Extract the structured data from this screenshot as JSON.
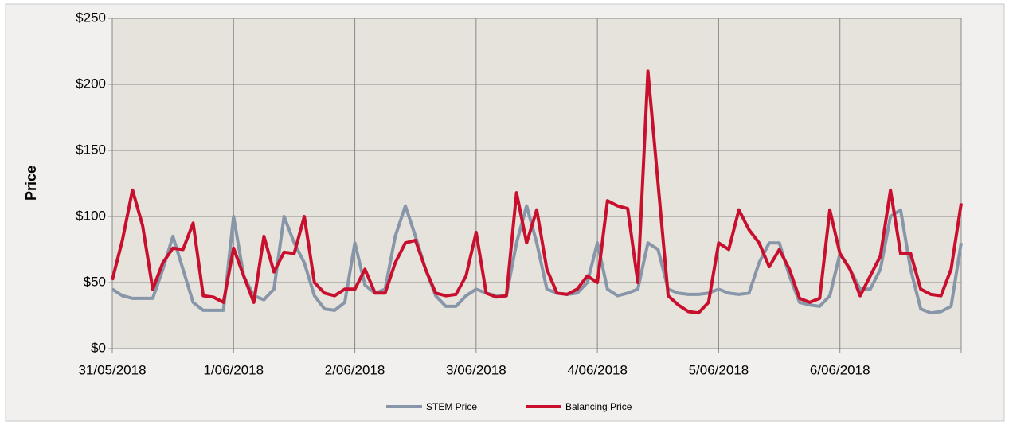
{
  "chart_data": {
    "type": "line",
    "y_label": "Price",
    "categories": [
      "31/05/2018",
      null,
      null,
      null,
      null,
      null,
      null,
      null,
      null,
      null,
      null,
      null,
      "1/06/2018",
      null,
      null,
      null,
      null,
      null,
      null,
      null,
      null,
      null,
      null,
      null,
      "2/06/2018",
      null,
      null,
      null,
      null,
      null,
      null,
      null,
      null,
      null,
      null,
      null,
      "3/06/2018",
      null,
      null,
      null,
      null,
      null,
      null,
      null,
      null,
      null,
      null,
      null,
      "4/06/2018",
      null,
      null,
      null,
      null,
      null,
      null,
      null,
      null,
      null,
      null,
      null,
      "5/06/2018",
      null,
      null,
      null,
      null,
      null,
      null,
      null,
      null,
      null,
      null,
      null,
      "6/06/2018",
      null,
      null,
      null,
      null,
      null,
      null,
      null,
      null,
      null,
      null,
      null,
      null
    ],
    "series": [
      {
        "name": "STEM Price",
        "color": "#8796a8",
        "values": [
          45,
          40,
          38,
          38,
          38,
          60,
          85,
          60,
          35,
          29,
          29,
          29,
          100,
          55,
          40,
          37,
          45,
          100,
          80,
          65,
          40,
          30,
          29,
          35,
          80,
          48,
          42,
          45,
          85,
          108,
          85,
          60,
          40,
          32,
          32,
          40,
          45,
          42,
          40,
          40,
          80,
          108,
          80,
          45,
          42,
          41,
          42,
          50,
          80,
          45,
          40,
          42,
          45,
          80,
          75,
          45,
          42,
          41,
          41,
          42,
          45,
          42,
          41,
          42,
          65,
          80,
          80,
          55,
          35,
          33,
          32,
          40,
          72,
          60,
          45,
          45,
          60,
          100,
          105,
          60,
          30,
          27,
          28,
          32,
          80
        ]
      },
      {
        "name": "Balancing Price",
        "color": "#c8102e",
        "values": [
          52,
          82,
          120,
          93,
          45,
          65,
          76,
          75,
          95,
          40,
          39,
          35,
          76,
          55,
          35,
          85,
          58,
          73,
          72,
          100,
          50,
          42,
          40,
          45,
          45,
          60,
          42,
          42,
          65,
          80,
          82,
          60,
          42,
          40,
          41,
          55,
          88,
          42,
          39,
          40,
          118,
          80,
          105,
          60,
          42,
          41,
          45,
          55,
          50,
          112,
          108,
          106,
          50,
          210,
          125,
          40,
          33,
          28,
          27,
          35,
          80,
          75,
          105,
          90,
          80,
          62,
          75,
          60,
          38,
          35,
          38,
          105,
          72,
          60,
          40,
          55,
          70,
          120,
          72,
          72,
          45,
          41,
          40,
          60,
          110
        ]
      }
    ],
    "ylim": [
      0,
      250
    ],
    "yticks": [
      {
        "value": 0,
        "label": "$0"
      },
      {
        "value": 50,
        "label": "$50"
      },
      {
        "value": 100,
        "label": "$100"
      },
      {
        "value": 150,
        "label": "$150"
      },
      {
        "value": 200,
        "label": "$200"
      },
      {
        "value": 250,
        "label": "$250"
      }
    ],
    "grid": true,
    "legend": "bottom"
  }
}
